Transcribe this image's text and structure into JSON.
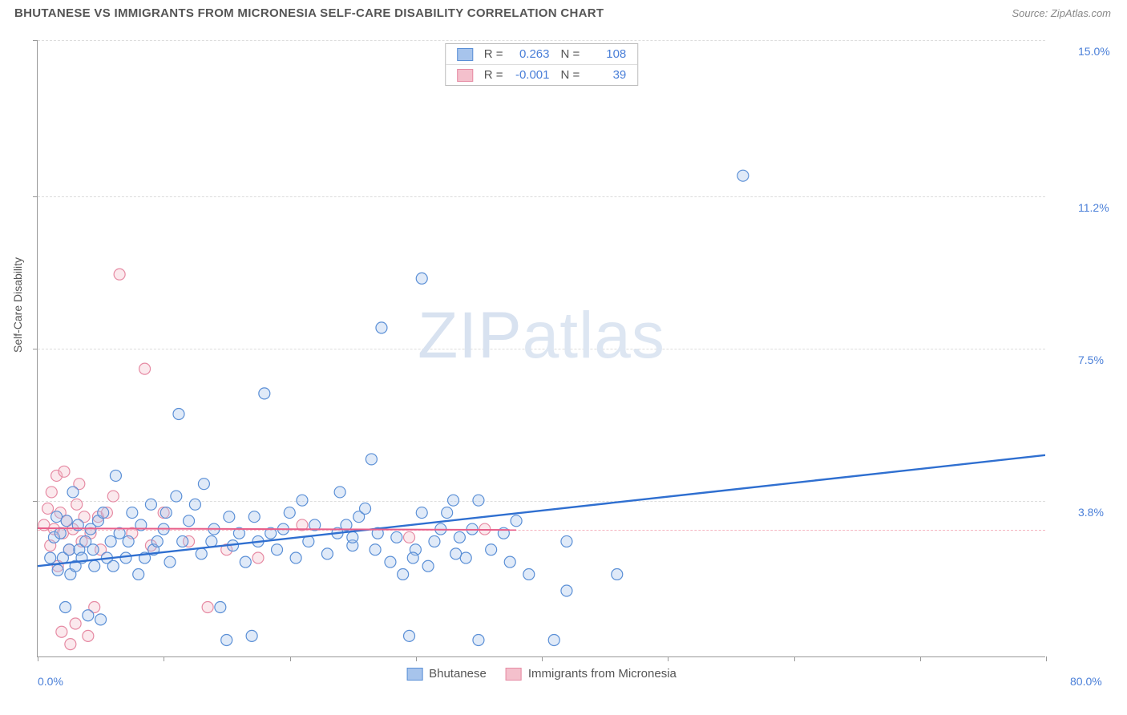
{
  "title": "BHUTANESE VS IMMIGRANTS FROM MICRONESIA SELF-CARE DISABILITY CORRELATION CHART",
  "source": "Source: ZipAtlas.com",
  "watermark": {
    "part1": "ZIP",
    "part2": "atlas"
  },
  "chart": {
    "type": "scatter",
    "xlim": [
      0,
      80
    ],
    "ylim": [
      0,
      15
    ],
    "x_ticks": [
      0,
      10,
      20,
      30,
      40,
      50,
      60,
      70,
      80
    ],
    "y_gridlines": [
      3.8,
      7.5,
      11.2,
      15.0
    ],
    "y_tick_labels": [
      "3.8%",
      "7.5%",
      "11.2%",
      "15.0%"
    ],
    "x_min_label": "0.0%",
    "x_max_label": "80.0%",
    "ylabel": "Self-Care Disability",
    "pink_reference_y": 3.1,
    "background_color": "#ffffff",
    "grid_color": "#dddddd",
    "series": [
      {
        "name": "Bhutanese",
        "fill": "#a7c4ec",
        "stroke": "#5a8fd6",
        "r_value": "0.263",
        "n_value": "108",
        "marker_radius": 7,
        "trend": {
          "x1": 0,
          "y1": 2.2,
          "x2": 80,
          "y2": 4.9,
          "color": "#2f6fd0",
          "width": 2.4
        },
        "points": [
          [
            1,
            2.4
          ],
          [
            1.3,
            2.9
          ],
          [
            1.5,
            3.4
          ],
          [
            1.6,
            2.1
          ],
          [
            1.8,
            3.0
          ],
          [
            2,
            2.4
          ],
          [
            2.2,
            1.2
          ],
          [
            2.3,
            3.3
          ],
          [
            2.5,
            2.6
          ],
          [
            2.6,
            2.0
          ],
          [
            2.8,
            4.0
          ],
          [
            3,
            2.2
          ],
          [
            3.2,
            3.2
          ],
          [
            3.3,
            2.6
          ],
          [
            3.5,
            2.4
          ],
          [
            3.8,
            2.8
          ],
          [
            4,
            1.0
          ],
          [
            4.2,
            3.1
          ],
          [
            4.4,
            2.6
          ],
          [
            4.5,
            2.2
          ],
          [
            4.8,
            3.3
          ],
          [
            5,
            0.9
          ],
          [
            5.2,
            3.5
          ],
          [
            5.5,
            2.4
          ],
          [
            5.8,
            2.8
          ],
          [
            6,
            2.2
          ],
          [
            6.2,
            4.4
          ],
          [
            6.5,
            3.0
          ],
          [
            7,
            2.4
          ],
          [
            7.2,
            2.8
          ],
          [
            7.5,
            3.5
          ],
          [
            8,
            2.0
          ],
          [
            8.2,
            3.2
          ],
          [
            8.5,
            2.4
          ],
          [
            9,
            3.7
          ],
          [
            9.2,
            2.6
          ],
          [
            9.5,
            2.8
          ],
          [
            10,
            3.1
          ],
          [
            10.2,
            3.5
          ],
          [
            10.5,
            2.3
          ],
          [
            11,
            3.9
          ],
          [
            11.2,
            5.9
          ],
          [
            11.5,
            2.8
          ],
          [
            12,
            3.3
          ],
          [
            12.5,
            3.7
          ],
          [
            13,
            2.5
          ],
          [
            13.2,
            4.2
          ],
          [
            13.8,
            2.8
          ],
          [
            14,
            3.1
          ],
          [
            14.5,
            1.2
          ],
          [
            15,
            0.4
          ],
          [
            15.2,
            3.4
          ],
          [
            15.5,
            2.7
          ],
          [
            16,
            3.0
          ],
          [
            16.5,
            2.3
          ],
          [
            17,
            0.5
          ],
          [
            17.2,
            3.4
          ],
          [
            17.5,
            2.8
          ],
          [
            18,
            6.4
          ],
          [
            18.5,
            3.0
          ],
          [
            19,
            2.6
          ],
          [
            19.5,
            3.1
          ],
          [
            20,
            3.5
          ],
          [
            20.5,
            2.4
          ],
          [
            21,
            3.8
          ],
          [
            21.5,
            2.8
          ],
          [
            22,
            3.2
          ],
          [
            23,
            2.5
          ],
          [
            23.8,
            3.0
          ],
          [
            24,
            4.0
          ],
          [
            24.5,
            3.2
          ],
          [
            25,
            2.7
          ],
          [
            25.5,
            3.4
          ],
          [
            26,
            3.6
          ],
          [
            26.5,
            4.8
          ],
          [
            27,
            3.0
          ],
          [
            27.3,
            8.0
          ],
          [
            28,
            2.3
          ],
          [
            28.5,
            2.9
          ],
          [
            29,
            2.0
          ],
          [
            29.5,
            0.5
          ],
          [
            30,
            2.6
          ],
          [
            30.5,
            3.5
          ],
          [
            30.5,
            9.2
          ],
          [
            31,
            2.2
          ],
          [
            31.5,
            2.8
          ],
          [
            32,
            3.1
          ],
          [
            32.5,
            3.5
          ],
          [
            33,
            3.8
          ],
          [
            33.5,
            2.9
          ],
          [
            34,
            2.4
          ],
          [
            34.5,
            3.1
          ],
          [
            35,
            3.8
          ],
          [
            35,
            0.4
          ],
          [
            36,
            2.6
          ],
          [
            37,
            3.0
          ],
          [
            37.5,
            2.3
          ],
          [
            38,
            3.3
          ],
          [
            39,
            2.0
          ],
          [
            41,
            0.4
          ],
          [
            42,
            2.8
          ],
          [
            42,
            1.6
          ],
          [
            46,
            2.0
          ],
          [
            56,
            11.7
          ],
          [
            25,
            2.9
          ],
          [
            26.8,
            2.6
          ],
          [
            29.8,
            2.4
          ],
          [
            33.2,
            2.5
          ]
        ]
      },
      {
        "name": "Immigrants from Micronesia",
        "fill": "#f4c0cc",
        "stroke": "#e68aa3",
        "r_value": "-0.001",
        "n_value": "39",
        "marker_radius": 7,
        "trend": {
          "x1": 0,
          "y1": 3.12,
          "x2": 38,
          "y2": 3.08,
          "color": "#e85f8a",
          "width": 2
        },
        "points": [
          [
            0.5,
            3.2
          ],
          [
            0.8,
            3.6
          ],
          [
            1,
            2.7
          ],
          [
            1.1,
            4.0
          ],
          [
            1.3,
            3.1
          ],
          [
            1.5,
            4.4
          ],
          [
            1.6,
            2.2
          ],
          [
            1.8,
            3.5
          ],
          [
            1.9,
            0.6
          ],
          [
            2,
            3.0
          ],
          [
            2.1,
            4.5
          ],
          [
            2.3,
            3.3
          ],
          [
            2.5,
            2.6
          ],
          [
            2.6,
            0.3
          ],
          [
            2.8,
            3.1
          ],
          [
            3,
            0.8
          ],
          [
            3.1,
            3.7
          ],
          [
            3.3,
            4.2
          ],
          [
            3.5,
            2.8
          ],
          [
            3.7,
            3.4
          ],
          [
            4,
            0.5
          ],
          [
            4.2,
            3.0
          ],
          [
            4.5,
            1.2
          ],
          [
            4.8,
            3.4
          ],
          [
            5,
            2.6
          ],
          [
            5.5,
            3.5
          ],
          [
            6,
            3.9
          ],
          [
            6.5,
            9.3
          ],
          [
            7.5,
            3.0
          ],
          [
            8.5,
            7.0
          ],
          [
            9,
            2.7
          ],
          [
            10,
            3.5
          ],
          [
            12,
            2.8
          ],
          [
            13.5,
            1.2
          ],
          [
            15,
            2.6
          ],
          [
            17.5,
            2.4
          ],
          [
            21,
            3.2
          ],
          [
            29.5,
            2.9
          ],
          [
            35.5,
            3.1
          ]
        ]
      }
    ]
  }
}
